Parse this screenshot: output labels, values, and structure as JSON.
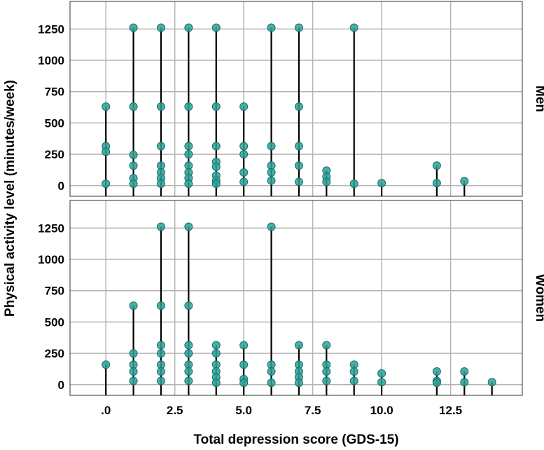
{
  "chart_data": {
    "type": "scatter",
    "xlabel": "Total depression score (GDS-15)",
    "ylabel": "Physical activity level (minutes/week)",
    "x_ticks": [
      0,
      2.5,
      5,
      7.5,
      10,
      12.5
    ],
    "x_tick_labels": [
      ".0",
      "2.5",
      "5.0",
      "7.5",
      "10.0",
      "12.5"
    ],
    "y_ticks": [
      0,
      250,
      500,
      750,
      1000,
      1250
    ],
    "y_tick_labels": [
      "0",
      "250",
      "500",
      "750",
      "1000",
      "1250"
    ],
    "xlim": [
      -1.3,
      15.1
    ],
    "ylim": [
      -85,
      1470
    ],
    "grid": true,
    "marker_color": "#2aa198",
    "drop_line_color": "#000000",
    "panels": [
      {
        "name": "Men",
        "points": [
          {
            "x": 0,
            "y": 630
          },
          {
            "x": 0,
            "y": 315
          },
          {
            "x": 0,
            "y": 270
          },
          {
            "x": 0,
            "y": 15
          },
          {
            "x": 1,
            "y": 1260
          },
          {
            "x": 1,
            "y": 630
          },
          {
            "x": 1,
            "y": 245
          },
          {
            "x": 1,
            "y": 160
          },
          {
            "x": 1,
            "y": 60
          },
          {
            "x": 1,
            "y": 15
          },
          {
            "x": 2,
            "y": 1260
          },
          {
            "x": 2,
            "y": 630
          },
          {
            "x": 2,
            "y": 315
          },
          {
            "x": 2,
            "y": 160
          },
          {
            "x": 2,
            "y": 105
          },
          {
            "x": 2,
            "y": 60
          },
          {
            "x": 2,
            "y": 15
          },
          {
            "x": 3,
            "y": 1260
          },
          {
            "x": 3,
            "y": 630
          },
          {
            "x": 3,
            "y": 315
          },
          {
            "x": 3,
            "y": 250
          },
          {
            "x": 3,
            "y": 160
          },
          {
            "x": 3,
            "y": 105
          },
          {
            "x": 3,
            "y": 60
          },
          {
            "x": 3,
            "y": 15
          },
          {
            "x": 4,
            "y": 1260
          },
          {
            "x": 4,
            "y": 630
          },
          {
            "x": 4,
            "y": 315
          },
          {
            "x": 4,
            "y": 190
          },
          {
            "x": 4,
            "y": 150
          },
          {
            "x": 4,
            "y": 80
          },
          {
            "x": 4,
            "y": 40
          },
          {
            "x": 4,
            "y": 15
          },
          {
            "x": 5,
            "y": 630
          },
          {
            "x": 5,
            "y": 315
          },
          {
            "x": 5,
            "y": 250
          },
          {
            "x": 5,
            "y": 105
          },
          {
            "x": 5,
            "y": 30
          },
          {
            "x": 6,
            "y": 1260
          },
          {
            "x": 6,
            "y": 315
          },
          {
            "x": 6,
            "y": 160
          },
          {
            "x": 6,
            "y": 105
          },
          {
            "x": 6,
            "y": 40
          },
          {
            "x": 7,
            "y": 1260
          },
          {
            "x": 7,
            "y": 630
          },
          {
            "x": 7,
            "y": 315
          },
          {
            "x": 7,
            "y": 160
          },
          {
            "x": 7,
            "y": 30
          },
          {
            "x": 8,
            "y": 120
          },
          {
            "x": 8,
            "y": 70
          },
          {
            "x": 8,
            "y": 30
          },
          {
            "x": 9,
            "y": 1260
          },
          {
            "x": 9,
            "y": 15
          },
          {
            "x": 10,
            "y": 20
          },
          {
            "x": 12,
            "y": 160
          },
          {
            "x": 12,
            "y": 20
          },
          {
            "x": 13,
            "y": 35
          }
        ]
      },
      {
        "name": "Women",
        "points": [
          {
            "x": 0,
            "y": 160
          },
          {
            "x": 1,
            "y": 630
          },
          {
            "x": 1,
            "y": 250
          },
          {
            "x": 1,
            "y": 160
          },
          {
            "x": 1,
            "y": 105
          },
          {
            "x": 1,
            "y": 30
          },
          {
            "x": 2,
            "y": 1260
          },
          {
            "x": 2,
            "y": 630
          },
          {
            "x": 2,
            "y": 315
          },
          {
            "x": 2,
            "y": 250
          },
          {
            "x": 2,
            "y": 160
          },
          {
            "x": 2,
            "y": 105
          },
          {
            "x": 2,
            "y": 30
          },
          {
            "x": 3,
            "y": 1260
          },
          {
            "x": 3,
            "y": 630
          },
          {
            "x": 3,
            "y": 315
          },
          {
            "x": 3,
            "y": 250
          },
          {
            "x": 3,
            "y": 160
          },
          {
            "x": 3,
            "y": 105
          },
          {
            "x": 3,
            "y": 30
          },
          {
            "x": 4,
            "y": 315
          },
          {
            "x": 4,
            "y": 250
          },
          {
            "x": 4,
            "y": 160
          },
          {
            "x": 4,
            "y": 105
          },
          {
            "x": 4,
            "y": 60
          },
          {
            "x": 4,
            "y": 15
          },
          {
            "x": 5,
            "y": 315
          },
          {
            "x": 5,
            "y": 160
          },
          {
            "x": 5,
            "y": 45
          },
          {
            "x": 5,
            "y": 15
          },
          {
            "x": 6,
            "y": 1260
          },
          {
            "x": 6,
            "y": 160
          },
          {
            "x": 6,
            "y": 105
          },
          {
            "x": 6,
            "y": 15
          },
          {
            "x": 7,
            "y": 315
          },
          {
            "x": 7,
            "y": 160
          },
          {
            "x": 7,
            "y": 105
          },
          {
            "x": 7,
            "y": 60
          },
          {
            "x": 7,
            "y": 15
          },
          {
            "x": 8,
            "y": 315
          },
          {
            "x": 8,
            "y": 160
          },
          {
            "x": 8,
            "y": 105
          },
          {
            "x": 8,
            "y": 30
          },
          {
            "x": 9,
            "y": 160
          },
          {
            "x": 9,
            "y": 105
          },
          {
            "x": 9,
            "y": 30
          },
          {
            "x": 10,
            "y": 90
          },
          {
            "x": 10,
            "y": 20
          },
          {
            "x": 12,
            "y": 105
          },
          {
            "x": 12,
            "y": 30
          },
          {
            "x": 12,
            "y": 15
          },
          {
            "x": 13,
            "y": 105
          },
          {
            "x": 13,
            "y": 20
          },
          {
            "x": 14,
            "y": 20
          }
        ]
      }
    ]
  }
}
